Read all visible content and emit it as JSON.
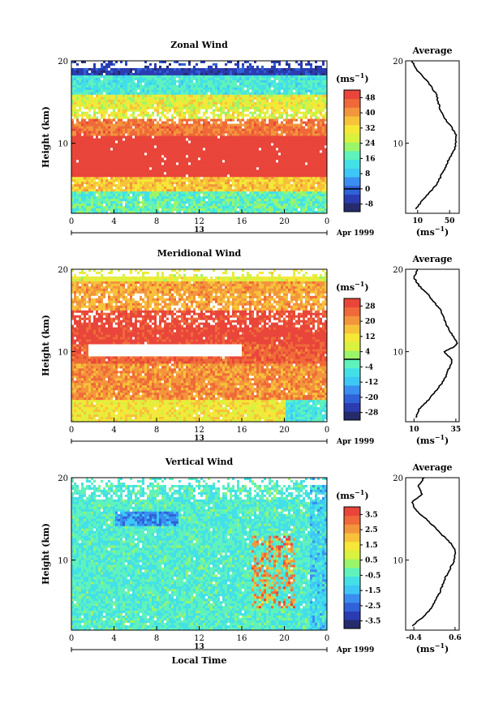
{
  "colors": {
    "colormap": [
      "#252b6b",
      "#2b3cb1",
      "#2f62d8",
      "#3a8ef0",
      "#3ec7f6",
      "#43e0e8",
      "#5ff2bc",
      "#9bf569",
      "#d8f23f",
      "#f5e838",
      "#f7c23a",
      "#f3953c",
      "#ef6a38",
      "#e9453a"
    ],
    "missing": "#ffffff"
  },
  "shared": {
    "xticks": [
      "0",
      "4",
      "8",
      "12",
      "16",
      "20",
      "0"
    ],
    "date_mid": "13",
    "date_right": "Apr 1999",
    "yticks": [
      "20",
      "10"
    ],
    "ylabel": "Height (km)",
    "xlabel": "Local Time",
    "unit_label": "(ms",
    "unit_exp": "−1",
    "profile_title": "Average"
  },
  "chart_data": [
    {
      "type": "heatmap",
      "title": "Zonal Wind",
      "xlabel": "",
      "ylabel": "Height (km)",
      "x_range": [
        0,
        24
      ],
      "y_range": [
        1.5,
        20
      ],
      "colorbar_ticks": [
        "48",
        "40",
        "32",
        "24",
        "16",
        "8",
        "0",
        "-8"
      ],
      "colorbar_range": [
        -12,
        52
      ],
      "colorbar_zero_line": 0,
      "profile": {
        "title": "Average",
        "x_ticks": [
          "10",
          "50"
        ],
        "x_range": [
          -5,
          62
        ],
        "y_ticks": [
          "20",
          "10"
        ],
        "heights": [
          2,
          3,
          4,
          5,
          6,
          7,
          8,
          9,
          10,
          11,
          12,
          13,
          14,
          15,
          16,
          17,
          18,
          19,
          20
        ],
        "values": [
          8,
          15,
          25,
          34,
          39,
          44,
          49,
          55,
          58,
          58,
          52,
          44,
          38,
          36,
          33,
          26,
          18,
          8,
          3
        ]
      }
    },
    {
      "type": "heatmap",
      "title": "Meridional Wind",
      "xlabel": "",
      "ylabel": "Height (km)",
      "x_range": [
        0,
        24
      ],
      "y_range": [
        1.5,
        20
      ],
      "colorbar_ticks": [
        "28",
        "20",
        "12",
        "4",
        "-4",
        "-12",
        "-20",
        "-28"
      ],
      "colorbar_range": [
        -32,
        32
      ],
      "colorbar_zero_line": 0,
      "profile": {
        "title": "Average",
        "x_ticks": [
          "10",
          "35"
        ],
        "x_range": [
          5,
          37
        ],
        "y_ticks": [
          "20",
          "10"
        ],
        "heights": [
          2,
          3,
          4,
          5,
          6,
          7,
          8,
          9,
          10,
          10.5,
          11,
          12,
          13,
          14,
          15,
          16,
          17,
          18,
          19,
          20
        ],
        "values": [
          11,
          13,
          18,
          22,
          26,
          29,
          31,
          33,
          28,
          33,
          36,
          33,
          30,
          28,
          26,
          22,
          18,
          13,
          10,
          12
        ]
      }
    },
    {
      "type": "heatmap",
      "title": "Vertical Wind",
      "xlabel": "Local Time",
      "ylabel": "Height (km)",
      "x_range": [
        0,
        24
      ],
      "y_range": [
        1.5,
        20
      ],
      "colorbar_ticks": [
        "3.5",
        "2.5",
        "1.5",
        "0.5",
        "-0.5",
        "-1.5",
        "-2.5",
        "-3.5"
      ],
      "colorbar_range": [
        -4,
        4
      ],
      "colorbar_zero_line": null,
      "profile": {
        "title": "Average",
        "x_ticks": [
          "-0.4",
          "0.6"
        ],
        "x_range": [
          -0.6,
          0.7
        ],
        "y_ticks": [
          "20",
          "10"
        ],
        "heights": [
          2,
          3,
          4,
          5,
          6,
          7,
          8,
          9,
          10,
          11,
          12,
          13,
          14,
          15,
          16,
          17,
          18,
          19,
          20
        ],
        "values": [
          -0.45,
          -0.2,
          0.0,
          0.12,
          0.22,
          0.3,
          0.38,
          0.48,
          0.58,
          0.62,
          0.5,
          0.3,
          0.1,
          -0.1,
          -0.35,
          -0.45,
          -0.2,
          -0.3,
          -0.15
        ]
      }
    }
  ]
}
